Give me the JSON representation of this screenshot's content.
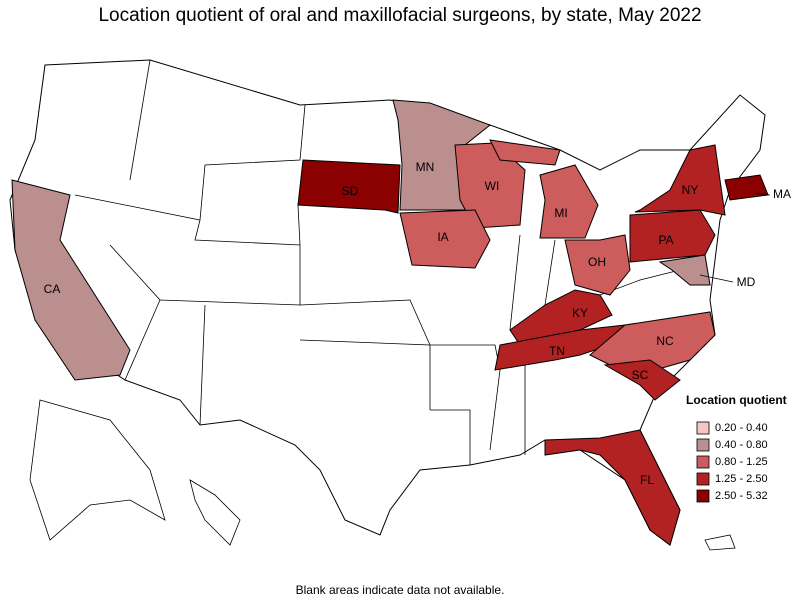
{
  "title": "Location quotient of oral and maxillofacial surgeons, by state, May 2022",
  "footnote": "Blank areas indicate data not available.",
  "legend": {
    "title": "Location quotient",
    "items": [
      {
        "label": "0.20 - 0.40",
        "color": "#f4c6c6"
      },
      {
        "label": "0.40 - 0.80",
        "color": "#bc8f8f"
      },
      {
        "label": "0.80 - 1.25",
        "color": "#cd5c5c"
      },
      {
        "label": "1.25 - 2.50",
        "color": "#b22222"
      },
      {
        "label": "2.50 - 5.32",
        "color": "#8b0000"
      }
    ]
  },
  "states": [
    {
      "abbr": "CA",
      "color": "#bc8f8f"
    },
    {
      "abbr": "SD",
      "color": "#8b0000"
    },
    {
      "abbr": "MN",
      "color": "#bc8f8f"
    },
    {
      "abbr": "WI",
      "color": "#cd5c5c"
    },
    {
      "abbr": "IA",
      "color": "#cd5c5c"
    },
    {
      "abbr": "MI",
      "color": "#cd5c5c"
    },
    {
      "abbr": "OH",
      "color": "#cd5c5c"
    },
    {
      "abbr": "PA",
      "color": "#b22222"
    },
    {
      "abbr": "NY",
      "color": "#b22222"
    },
    {
      "abbr": "MA",
      "color": "#8b0000"
    },
    {
      "abbr": "MD",
      "color": "#bc8f8f"
    },
    {
      "abbr": "KY",
      "color": "#b22222"
    },
    {
      "abbr": "TN",
      "color": "#b22222"
    },
    {
      "abbr": "NC",
      "color": "#cd5c5c"
    },
    {
      "abbr": "SC",
      "color": "#b22222"
    },
    {
      "abbr": "FL",
      "color": "#b22222"
    }
  ]
}
